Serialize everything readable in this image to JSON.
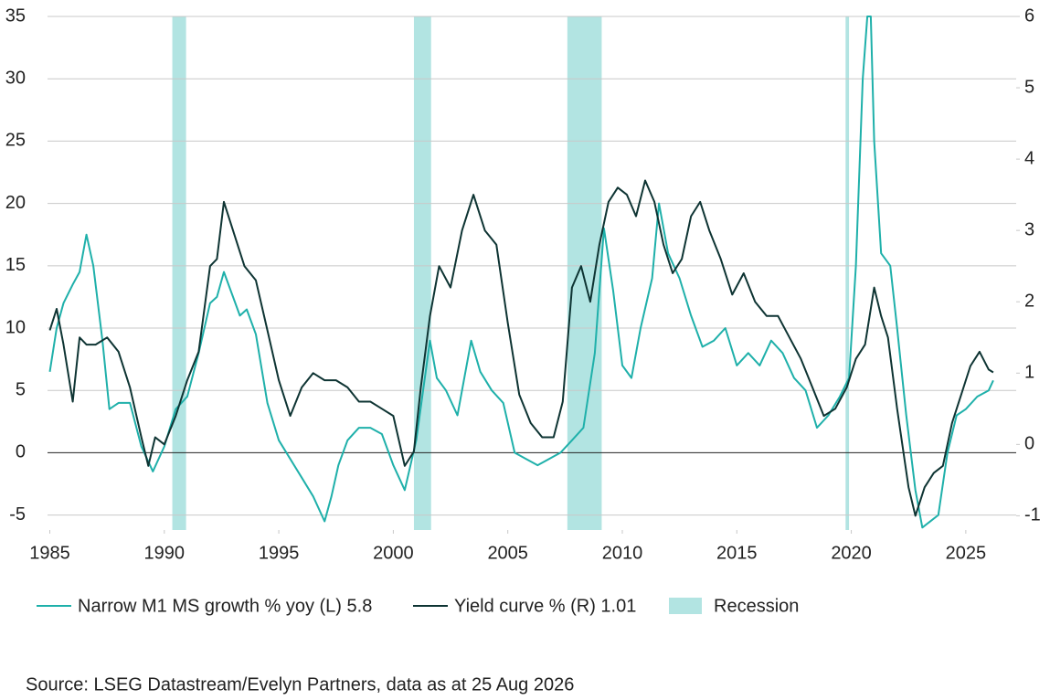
{
  "chart_data": {
    "type": "line",
    "xlim": [
      1984.9,
      2027.2
    ],
    "xticks": [
      1985,
      1990,
      1995,
      2000,
      2005,
      2010,
      2015,
      2020,
      2025
    ],
    "ylim": [
      -6.2,
      35
    ],
    "yticks": [
      35,
      30,
      25,
      20,
      15,
      10,
      5,
      0,
      -5
    ],
    "y2lim": [
      -1.2,
      6
    ],
    "y2ticks": [
      6,
      5,
      4,
      3,
      2,
      1,
      0,
      -1
    ],
    "grid": true,
    "recession": {
      "name": "Recession",
      "color": "#b2e4e2",
      "periods": [
        [
          1990.35,
          1990.95
        ],
        [
          2000.9,
          2001.65
        ],
        [
          2007.6,
          2009.1
        ],
        [
          2019.75,
          2019.9
        ]
      ]
    },
    "series": [
      {
        "name": "Narrow M1 MS growth % yoy (L) 5.8",
        "color": "#1fb0aa",
        "x": [
          1985.0,
          1985.3,
          1985.6,
          1986.0,
          1986.3,
          1986.6,
          1986.9,
          1987.3,
          1987.6,
          1988.0,
          1988.5,
          1989.0,
          1989.5,
          1990.0,
          1990.5,
          1991.0,
          1991.5,
          1992.0,
          1992.3,
          1992.6,
          1993.0,
          1993.3,
          1993.6,
          1994.0,
          1994.5,
          1995.0,
          1995.5,
          1996.0,
          1996.5,
          1997.0,
          1997.3,
          1997.6,
          1998.0,
          1998.5,
          1999.0,
          1999.5,
          2000.0,
          2000.5,
          2001.0,
          2001.3,
          2001.6,
          2001.9,
          2002.3,
          2002.8,
          2003.0,
          2003.4,
          2003.8,
          2004.3,
          2004.8,
          2005.3,
          2005.8,
          2006.3,
          2006.8,
          2007.3,
          2007.8,
          2008.3,
          2008.8,
          2009.2,
          2009.6,
          2010.0,
          2010.4,
          2010.8,
          2011.3,
          2011.6,
          2012.0,
          2012.5,
          2013.0,
          2013.5,
          2014.0,
          2014.5,
          2015.0,
          2015.5,
          2016.0,
          2016.5,
          2017.0,
          2017.5,
          2018.0,
          2018.5,
          2019.0,
          2019.5,
          2019.9,
          2020.2,
          2020.5,
          2020.7,
          2020.85,
          2021.0,
          2021.3,
          2021.7,
          2022.0,
          2022.4,
          2022.8,
          2023.1,
          2023.8,
          2024.2,
          2024.6,
          2025.0,
          2025.5,
          2026.0,
          2026.2
        ],
        "values": [
          6.5,
          10,
          12,
          13.5,
          14.5,
          17.5,
          15,
          9,
          3.5,
          4,
          4,
          0.5,
          -1.5,
          0.5,
          3.5,
          4.5,
          8,
          12,
          12.5,
          14.5,
          12.5,
          11,
          11.5,
          9.5,
          4,
          1,
          -0.5,
          -2,
          -3.5,
          -5.5,
          -3.5,
          -1,
          1,
          2,
          2,
          1.5,
          -1,
          -3,
          1,
          5,
          9,
          6,
          5,
          3,
          5,
          9,
          6.5,
          5,
          4,
          0,
          -0.5,
          -1,
          -0.5,
          0,
          1,
          2,
          8,
          18,
          13,
          7,
          6,
          10,
          14,
          20,
          16,
          14,
          11,
          8.5,
          9,
          10,
          7,
          8,
          7,
          9,
          8,
          6,
          5,
          2,
          3,
          4.5,
          6,
          15,
          30,
          35,
          35,
          25,
          16,
          15,
          10,
          3,
          -3,
          -6,
          -5,
          0,
          3,
          3.5,
          4.5,
          5,
          5.8
        ]
      },
      {
        "name": "Yield curve % (R) 1.01",
        "color": "#0e3433",
        "axis": "y2",
        "x": [
          1985.0,
          1985.3,
          1985.6,
          1986.0,
          1986.3,
          1986.6,
          1987.0,
          1987.5,
          1988.0,
          1988.5,
          1989.0,
          1989.3,
          1989.6,
          1990.0,
          1990.5,
          1991.0,
          1991.5,
          1992.0,
          1992.3,
          1992.6,
          1993.0,
          1993.5,
          1994.0,
          1994.5,
          1995.0,
          1995.5,
          1996.0,
          1996.5,
          1997.0,
          1997.5,
          1998.0,
          1998.5,
          1999.0,
          1999.5,
          2000.0,
          2000.5,
          2000.9,
          2001.2,
          2001.6,
          2002.0,
          2002.5,
          2003.0,
          2003.5,
          2004.0,
          2004.5,
          2005.0,
          2005.5,
          2006.0,
          2006.5,
          2007.0,
          2007.4,
          2007.8,
          2008.2,
          2008.6,
          2009.0,
          2009.4,
          2009.8,
          2010.2,
          2010.6,
          2011.0,
          2011.4,
          2011.8,
          2012.2,
          2012.6,
          2013.0,
          2013.4,
          2013.8,
          2014.3,
          2014.8,
          2015.3,
          2015.8,
          2016.3,
          2016.8,
          2017.3,
          2017.8,
          2018.3,
          2018.8,
          2019.3,
          2019.8,
          2020.2,
          2020.6,
          2021.0,
          2021.3,
          2021.6,
          2022.0,
          2022.5,
          2022.8,
          2023.2,
          2023.6,
          2024.0,
          2024.4,
          2024.8,
          2025.2,
          2025.6,
          2026.0,
          2026.2
        ],
        "values": [
          1.6,
          1.9,
          1.4,
          0.6,
          1.5,
          1.4,
          1.4,
          1.5,
          1.3,
          0.8,
          0.1,
          -0.3,
          0.1,
          0.0,
          0.4,
          0.9,
          1.3,
          2.5,
          2.6,
          3.4,
          3.0,
          2.5,
          2.3,
          1.6,
          0.9,
          0.4,
          0.8,
          1.0,
          0.9,
          0.9,
          0.8,
          0.6,
          0.6,
          0.5,
          0.4,
          -0.3,
          -0.1,
          0.8,
          1.8,
          2.5,
          2.2,
          3.0,
          3.5,
          3.0,
          2.8,
          1.7,
          0.7,
          0.3,
          0.1,
          0.1,
          0.6,
          2.2,
          2.5,
          2.0,
          2.8,
          3.4,
          3.6,
          3.5,
          3.2,
          3.7,
          3.4,
          2.8,
          2.4,
          2.6,
          3.2,
          3.4,
          3.0,
          2.6,
          2.1,
          2.4,
          2.0,
          1.8,
          1.8,
          1.5,
          1.2,
          0.8,
          0.4,
          0.5,
          0.8,
          1.2,
          1.4,
          2.2,
          1.8,
          1.5,
          0.5,
          -0.6,
          -1.0,
          -0.6,
          -0.4,
          -0.3,
          0.3,
          0.7,
          1.1,
          1.3,
          1.05,
          1.01
        ]
      }
    ],
    "source": "Source: LSEG Datastream/Evelyn Partners, data as at 25 Aug 2026"
  }
}
